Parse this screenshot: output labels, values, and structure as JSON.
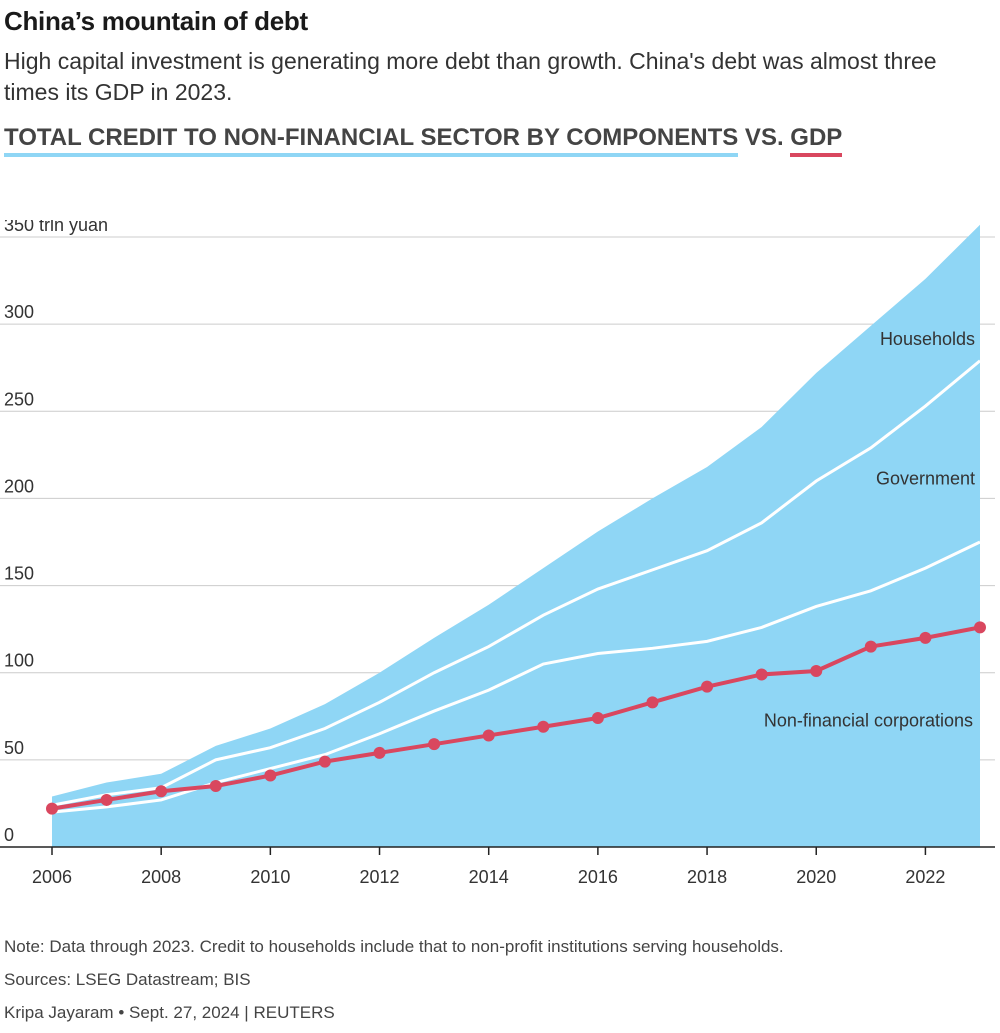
{
  "header": {
    "title": "China’s mountain of debt",
    "subtitle": "High capital investment is generating more debt than growth. China's debt was almost three times its GDP in 2023.",
    "heading_part1": "TOTAL CREDIT TO NON-FINANCIAL SECTOR BY COMPONENTS",
    "heading_part2": " VS. ",
    "heading_part3": "GDP"
  },
  "colors": {
    "area": "#8fd6f5",
    "gdp_line": "#d9475f",
    "divider": "#ffffff",
    "grid": "#cccccc"
  },
  "chart_data": {
    "type": "area",
    "ylabel": "trln yuan",
    "ylim": [
      0,
      350
    ],
    "yticks": [
      0,
      50,
      100,
      150,
      200,
      250,
      300,
      350
    ],
    "ytick_labels": [
      "0",
      "50",
      "100",
      "150",
      "200",
      "250",
      "300",
      "350 trln yuan"
    ],
    "xticks": [
      2006,
      2008,
      2010,
      2012,
      2014,
      2016,
      2018,
      2020,
      2022
    ],
    "x": [
      2006,
      2007,
      2008,
      2009,
      2010,
      2011,
      2012,
      2013,
      2014,
      2015,
      2016,
      2017,
      2018,
      2019,
      2020,
      2021,
      2022,
      2023
    ],
    "series": [
      {
        "name": "Non-financial corporations",
        "stack": "cumulative",
        "values": [
          20,
          23,
          27,
          37,
          45,
          53,
          65,
          78,
          90,
          105,
          111,
          114,
          118,
          126,
          138,
          147,
          160,
          175
        ]
      },
      {
        "name": "Government",
        "stack": "cumulative",
        "values": [
          24,
          30,
          34,
          50,
          57,
          68,
          83,
          100,
          115,
          133,
          148,
          159,
          170,
          186,
          210,
          229,
          253,
          279
        ]
      },
      {
        "name": "Households",
        "stack": "cumulative",
        "values": [
          29,
          37,
          42,
          58,
          68,
          82,
          100,
          120,
          139,
          160,
          181,
          200,
          218,
          241,
          272,
          299,
          326,
          357
        ]
      },
      {
        "name": "GDP",
        "values": [
          22,
          27,
          32,
          35,
          41,
          49,
          54,
          59,
          64,
          69,
          74,
          83,
          92,
          99,
          101,
          115,
          120,
          126
        ]
      }
    ],
    "labels": {
      "households": "Households",
      "government": "Government",
      "corporations": "Non-financial corporations"
    }
  },
  "footer": {
    "note": "Note: Data through 2023. Credit to households include that to non-profit institutions serving households.",
    "sources": "Sources: LSEG Datastream; BIS",
    "byline": "Kripa Jayaram • Sept. 27, 2024 | REUTERS"
  }
}
